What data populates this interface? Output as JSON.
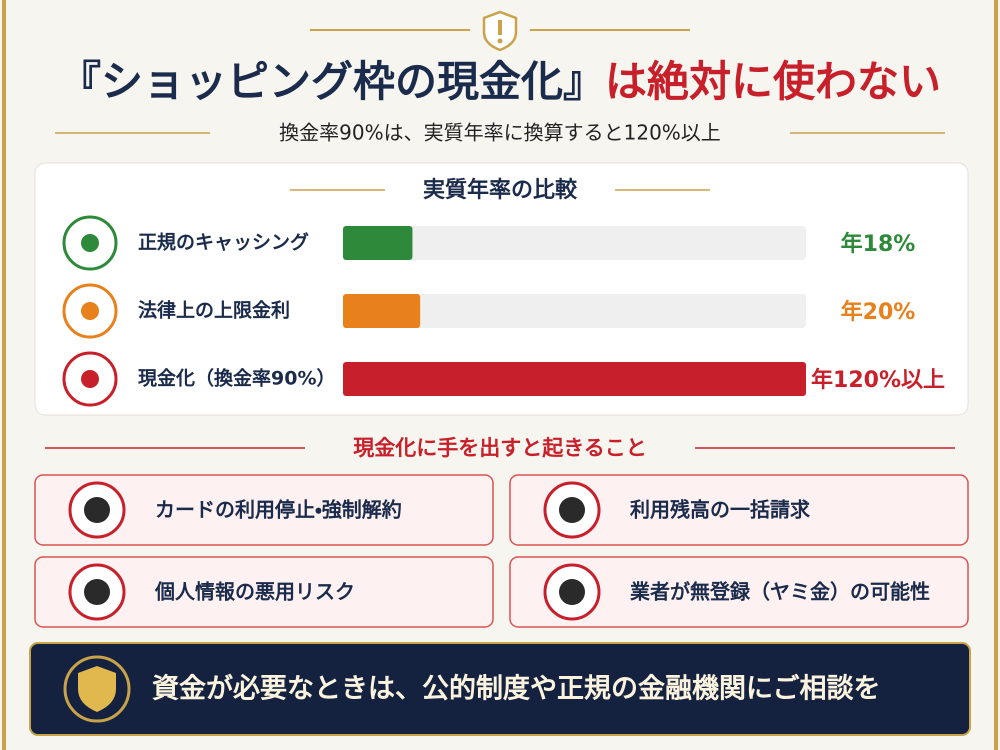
{
  "header": {
    "title_part1": "『ショッピング枠の現金化』",
    "title_part2": "は絶対に使わない",
    "subtitle": "換金率90%は、実質年率に換算すると120%以上"
  },
  "chart_data": {
    "type": "bar",
    "orientation": "horizontal",
    "title": "実質年率の比較",
    "categories": [
      "正規のキャッシング",
      "法律上の上限金利",
      "現金化（換金率90%）"
    ],
    "values": [
      18,
      20,
      120
    ],
    "value_labels": [
      "年18%",
      "年20%",
      "年120%以上"
    ],
    "colors": [
      "#2e8a3a",
      "#e8801c",
      "#c8202a"
    ]
  },
  "risks": {
    "title": "現金化に手を出すと起きること",
    "items": [
      "カードの利用停止・強制解約",
      "利用残高の一括請求",
      "個人情報の悪用リスク",
      "業者が無登録（ヤミ金）の可能性"
    ]
  },
  "footer": {
    "message": "資金が必要なときは、公的制度や正規の金融機関にご相談を"
  }
}
